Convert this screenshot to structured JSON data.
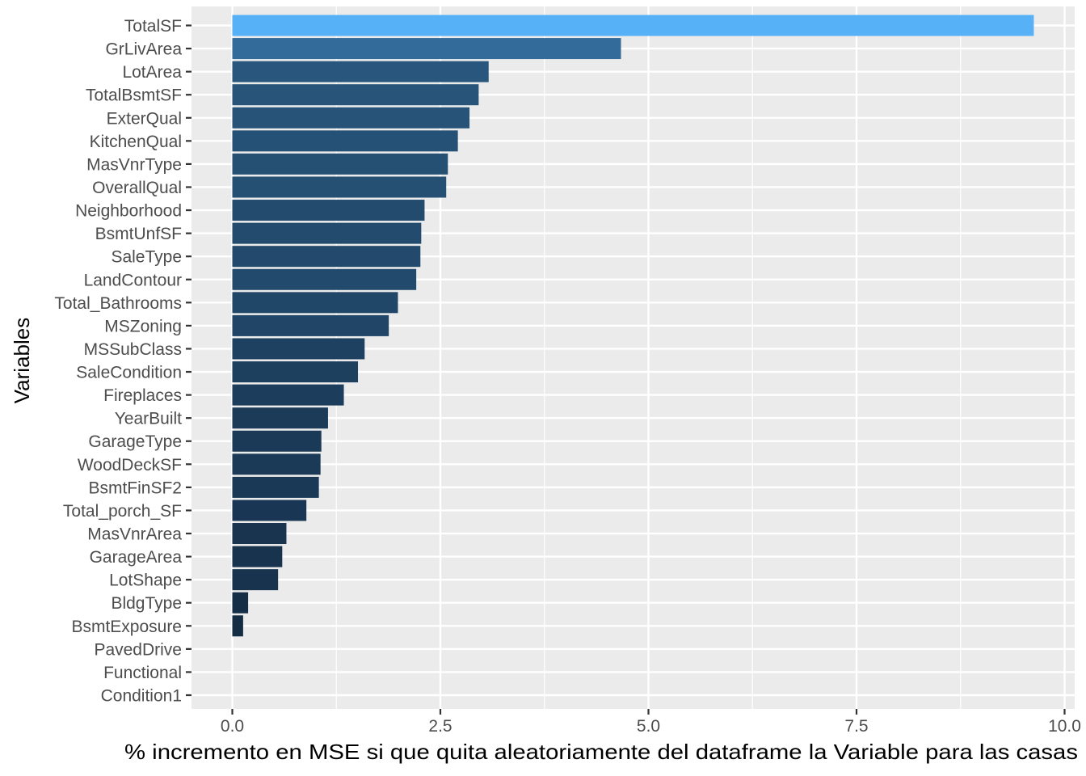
{
  "chart_data": {
    "type": "bar",
    "orientation": "horizontal",
    "title": "",
    "xlabel": "% incremento en  MSE si que quita aleatoriamente del dataframe la Variable para las casas",
    "ylabel": "Variables",
    "xlim": [
      -0.1,
      10.1
    ],
    "x_ticks": [
      0.0,
      2.5,
      5.0,
      7.5,
      10.0
    ],
    "x_tick_labels": [
      "0.0",
      "2.5",
      "5.0",
      "7.5",
      "10.0"
    ],
    "grid": true,
    "legend": "none",
    "colors": {
      "panel_bg": "#ebebeb",
      "grid": "#ffffff",
      "bar_low": "#132b43",
      "bar_high": "#56b1f7"
    },
    "categories": [
      "TotalSF",
      "GrLivArea",
      "LotArea",
      "TotalBsmtSF",
      "ExterQual",
      "KitchenQual",
      "MasVnrType",
      "OverallQual",
      "Neighborhood",
      "BsmtUnfSF",
      "SaleType",
      "LandContour",
      "Total_Bathrooms",
      "MSZoning",
      "MSSubClass",
      "SaleCondition",
      "Fireplaces",
      "YearBuilt",
      "GarageType",
      "WoodDeckSF",
      "BsmtFinSF2",
      "Total_porch_SF",
      "MasVnrArea",
      "GarageArea",
      "LotShape",
      "BldgType",
      "BsmtExposure",
      "PavedDrive",
      "Functional",
      "Condition1"
    ],
    "values": [
      9.63,
      4.67,
      3.08,
      2.96,
      2.85,
      2.71,
      2.59,
      2.57,
      2.31,
      2.27,
      2.26,
      2.21,
      1.99,
      1.88,
      1.59,
      1.51,
      1.34,
      1.15,
      1.07,
      1.06,
      1.04,
      0.89,
      0.65,
      0.6,
      0.55,
      0.19,
      0.13,
      0.0,
      0.0,
      0.0
    ]
  }
}
